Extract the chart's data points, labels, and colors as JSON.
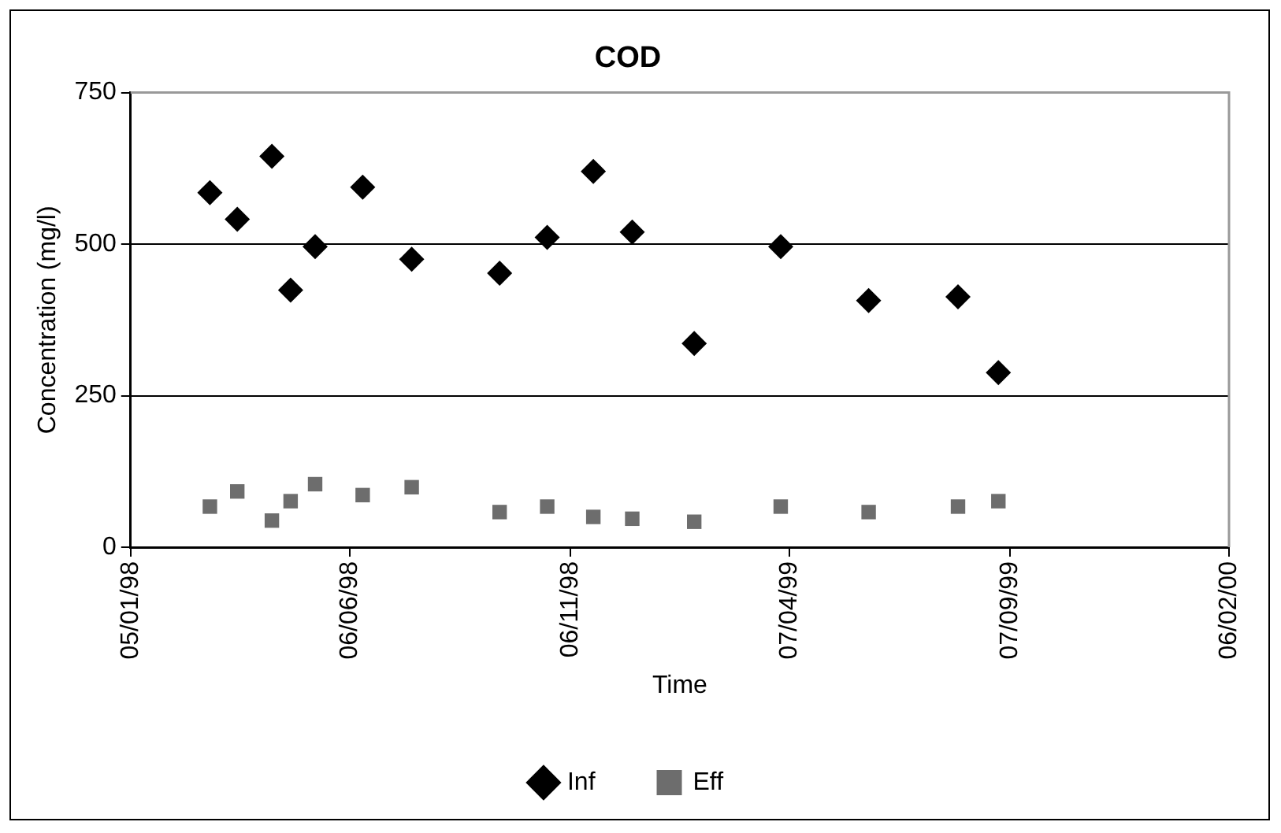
{
  "chart_data": {
    "type": "scatter",
    "title": "COD",
    "xlabel": "Time",
    "ylabel": "Concentration (mg/l)",
    "xlim": [
      "1998-01-05",
      "2000-02-06"
    ],
    "xticks": [
      {
        "value": "1998-01-05",
        "label": "05/01/98"
      },
      {
        "value": "1998-06-06",
        "label": "06/06/98"
      },
      {
        "value": "1998-11-06",
        "label": "06/11/98"
      },
      {
        "value": "1999-04-07",
        "label": "07/04/99"
      },
      {
        "value": "1999-09-07",
        "label": "07/09/99"
      },
      {
        "value": "2000-02-06",
        "label": "06/02/00"
      }
    ],
    "ylim": [
      0,
      750
    ],
    "yticks": [
      0,
      250,
      500,
      750
    ],
    "grid": "y",
    "legend": "bottom",
    "x": [
      "1998-03-01",
      "1998-03-20",
      "1998-04-13",
      "1998-04-26",
      "1998-05-13",
      "1998-06-15",
      "1998-07-19",
      "1998-09-18",
      "1998-10-21",
      "1998-11-22",
      "1998-12-19",
      "1999-01-31",
      "1999-04-01",
      "1999-06-01",
      "1999-08-02",
      "1999-08-30"
    ],
    "series": [
      {
        "name": "Inf",
        "color": "#000000",
        "marker": "diamond",
        "values": [
          585,
          541,
          645,
          424,
          496,
          594,
          475,
          452,
          511,
          620,
          520,
          336,
          496,
          407,
          413,
          288
        ]
      },
      {
        "name": "Eff",
        "color": "#6d6d6d",
        "marker": "square",
        "values": [
          67,
          92,
          44,
          76,
          104,
          86,
          99,
          58,
          67,
          50,
          47,
          42,
          67,
          58,
          67,
          76
        ]
      }
    ]
  }
}
